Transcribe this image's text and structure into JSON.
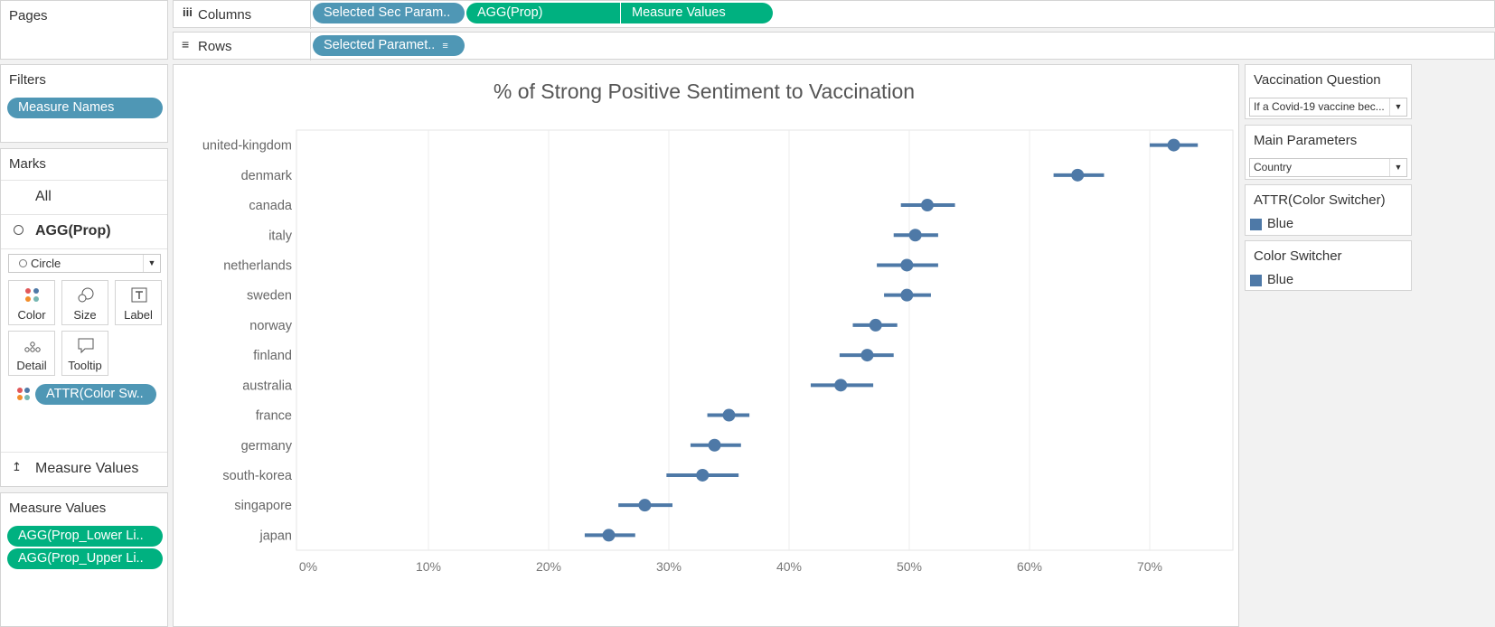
{
  "pages": {
    "title": "Pages"
  },
  "columns_shelf": {
    "label": "Columns",
    "pills": [
      "Selected Sec Param..",
      "AGG(Prop)",
      "Measure Values"
    ]
  },
  "rows_shelf": {
    "label": "Rows",
    "pills": [
      "Selected Paramet.."
    ]
  },
  "filters": {
    "title": "Filters",
    "pills": [
      "Measure Names"
    ]
  },
  "marks": {
    "title": "Marks",
    "all_label": "All",
    "agg_label": "AGG(Prop)",
    "mark_type": "Circle",
    "buttons": [
      "Color",
      "Size",
      "Label",
      "Detail",
      "Tooltip"
    ],
    "color_pill": "ATTR(Color Sw..",
    "measure_values_label": "Measure Values"
  },
  "measure_values_card": {
    "title": "Measure Values",
    "pills": [
      "AGG(Prop_Lower Li..",
      "AGG(Prop_Upper Li.."
    ]
  },
  "right_panel": {
    "vaccination_question": {
      "title": "Vaccination Question",
      "value": "If a Covid-19 vaccine bec..."
    },
    "main_parameters": {
      "title": "Main Parameters",
      "value": "Country"
    },
    "attr_color": {
      "title": "ATTR(Color Switcher)",
      "item": "Blue"
    },
    "color_switcher": {
      "title": "Color Switcher",
      "item": "Blue"
    }
  },
  "colors": {
    "mark": "#4e79a7",
    "pill_blue": "#4f97b5",
    "pill_green": "#00b180"
  },
  "chart_data": {
    "type": "scatter",
    "title": "% of Strong Positive Sentiment to Vaccination",
    "xlabel": "",
    "ylabel": "",
    "xlim": [
      0,
      0.77
    ],
    "x_ticks": [
      "0%",
      "10%",
      "20%",
      "30%",
      "40%",
      "50%",
      "60%",
      "70%"
    ],
    "x_tick_values": [
      0,
      0.1,
      0.2,
      0.3,
      0.4,
      0.5,
      0.6,
      0.7
    ],
    "grid": true,
    "categories": [
      "united-kingdom",
      "denmark",
      "canada",
      "italy",
      "netherlands",
      "sweden",
      "norway",
      "finland",
      "australia",
      "france",
      "germany",
      "south-korea",
      "singapore",
      "japan"
    ],
    "values": [
      0.72,
      0.64,
      0.515,
      0.505,
      0.498,
      0.498,
      0.472,
      0.465,
      0.443,
      0.35,
      0.338,
      0.328,
      0.28,
      0.25
    ],
    "lower": [
      0.7,
      0.62,
      0.493,
      0.487,
      0.473,
      0.479,
      0.453,
      0.442,
      0.418,
      0.332,
      0.318,
      0.298,
      0.258,
      0.23
    ],
    "upper": [
      0.74,
      0.662,
      0.538,
      0.524,
      0.524,
      0.518,
      0.49,
      0.487,
      0.47,
      0.367,
      0.36,
      0.358,
      0.303,
      0.272
    ]
  }
}
